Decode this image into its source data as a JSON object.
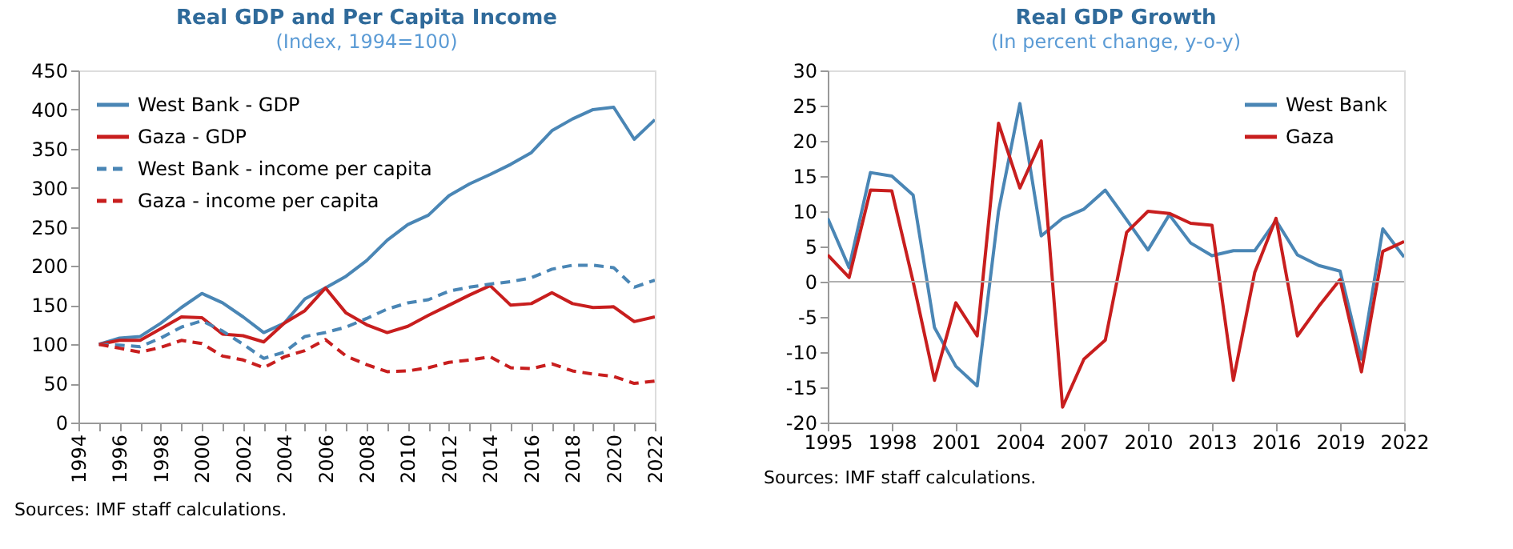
{
  "chart_data": [
    {
      "type": "line",
      "title": "Real GDP and Per Capita Income",
      "subtitle": "(Index, 1994=100)",
      "x": [
        1995,
        1996,
        1997,
        1998,
        1999,
        2000,
        2001,
        2002,
        2003,
        2004,
        2005,
        2006,
        2007,
        2008,
        2009,
        2010,
        2011,
        2012,
        2013,
        2014,
        2015,
        2016,
        2017,
        2018,
        2019,
        2020,
        2021,
        2022
      ],
      "series": [
        {
          "name": "West Bank - GDP",
          "color": "#4a86b5",
          "line_style": "solid",
          "values": [
            100,
            108,
            110,
            127,
            147,
            165,
            153,
            135,
            115,
            127,
            158,
            172,
            187,
            207,
            233,
            253,
            265,
            290,
            305,
            317,
            330,
            345,
            373,
            388,
            400,
            403,
            362,
            387
          ]
        },
        {
          "name": "Gaza - GDP",
          "color": "#c81e1e",
          "line_style": "solid",
          "values": [
            100,
            105,
            105,
            120,
            135,
            134,
            113,
            111,
            103,
            127,
            143,
            172,
            140,
            125,
            115,
            123,
            137,
            150,
            163,
            175,
            150,
            152,
            166,
            152,
            147,
            148,
            129,
            135
          ]
        },
        {
          "name": "West Bank - income per capita",
          "color": "#4a86b5",
          "line_style": "dashed",
          "values": [
            100,
            99,
            97,
            108,
            122,
            130,
            117,
            100,
            82,
            90,
            110,
            115,
            122,
            133,
            145,
            153,
            157,
            168,
            173,
            177,
            180,
            185,
            196,
            201,
            201,
            198,
            173,
            182
          ]
        },
        {
          "name": "Gaza - income per capita",
          "color": "#c81e1e",
          "line_style": "dashed",
          "values": [
            100,
            95,
            90,
            96,
            105,
            101,
            85,
            80,
            70,
            84,
            92,
            106,
            85,
            74,
            65,
            66,
            70,
            77,
            80,
            84,
            70,
            69,
            75,
            66,
            62,
            59,
            50,
            53
          ]
        }
      ],
      "xlim": [
        1994,
        2022
      ],
      "xticks": [
        1994,
        {
          "value": 1995,
          "label": null
        },
        1996,
        {
          "value": 1997,
          "label": null
        },
        1998,
        {
          "value": 1999,
          "label": null
        },
        2000,
        {
          "value": 2001,
          "label": null
        },
        2002,
        {
          "value": 2003,
          "label": null
        },
        2004,
        {
          "value": 2005,
          "label": null
        },
        2006,
        {
          "value": 2007,
          "label": null
        },
        2008,
        {
          "value": 2009,
          "label": null
        },
        2010,
        {
          "value": 2011,
          "label": null
        },
        2012,
        {
          "value": 2013,
          "label": null
        },
        2014,
        {
          "value": 2015,
          "label": null
        },
        2016,
        {
          "value": 2017,
          "label": null
        },
        2018,
        {
          "value": 2019,
          "label": null
        },
        2020,
        {
          "value": 2021,
          "label": null
        },
        2022
      ],
      "ylim": [
        0,
        450
      ],
      "yticks": [
        0,
        50,
        100,
        150,
        200,
        250,
        300,
        350,
        400,
        450
      ],
      "grid": false,
      "legend": "top left",
      "annotations": [
        "Sources: IMF staff calculations."
      ]
    },
    {
      "type": "line",
      "title": "Real GDP Growth",
      "subtitle": "(In percent change, y-o-y)",
      "x": [
        1995,
        1996,
        1997,
        1998,
        1999,
        2000,
        2001,
        2002,
        2003,
        2004,
        2005,
        2006,
        2007,
        2008,
        2009,
        2010,
        2011,
        2012,
        2013,
        2014,
        2015,
        2016,
        2017,
        2018,
        2019,
        2020,
        2021,
        2022
      ],
      "series": [
        {
          "name": "West Bank",
          "color": "#4a86b5",
          "line_style": "solid",
          "values": [
            9,
            2,
            15.5,
            15,
            12.3,
            -6.5,
            -12,
            -14.8,
            10,
            25.3,
            6.5,
            9,
            10.3,
            13,
            8.8,
            4.5,
            9.5,
            5.5,
            3.7,
            4.4,
            4.4,
            8.7,
            3.8,
            2.3,
            1.5,
            -11,
            7.5,
            3.5
          ]
        },
        {
          "name": "Gaza",
          "color": "#c81e1e",
          "line_style": "solid",
          "values": [
            3.8,
            0.6,
            13,
            12.9,
            0,
            -14,
            -3,
            -7.7,
            22.5,
            13.3,
            20,
            -17.8,
            -11,
            -8.3,
            7,
            10,
            9.7,
            8.3,
            8,
            -14,
            1.3,
            9,
            -7.7,
            -3.5,
            0.3,
            -12.8,
            4.3,
            5.7
          ]
        }
      ],
      "xlim": [
        1995,
        2022
      ],
      "xticks": [
        1995,
        1998,
        2001,
        2004,
        2007,
        2010,
        2013,
        2016,
        2019,
        2022
      ],
      "ylim": [
        -20,
        30
      ],
      "yticks": [
        -20,
        -15,
        -10,
        -5,
        0,
        5,
        10,
        15,
        20,
        25,
        30
      ],
      "ref_lines": [
        {
          "axis": "y",
          "value": 0,
          "color": "#b0b0b0"
        }
      ],
      "grid": false,
      "legend": "top right",
      "annotations": [
        "Sources: IMF staff calculations."
      ]
    }
  ]
}
